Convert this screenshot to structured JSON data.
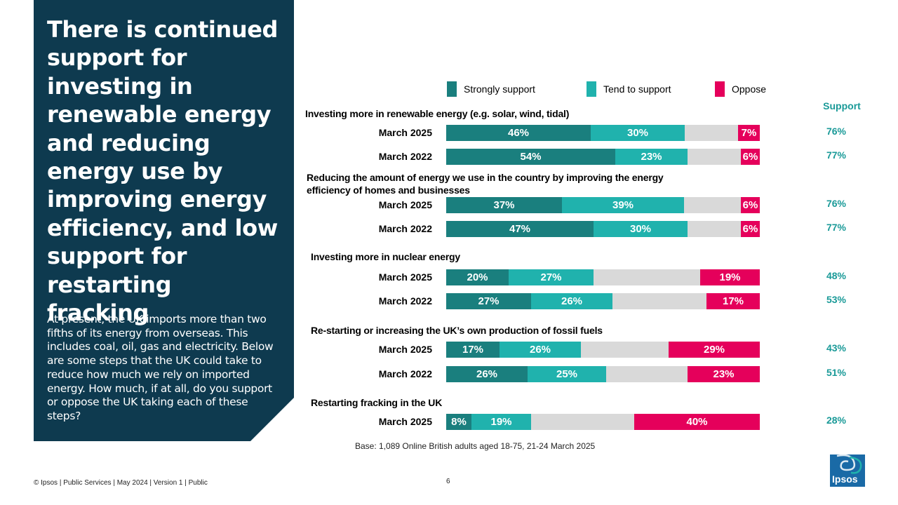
{
  "panel": {
    "title": "There is continued support for investing in renewable energy and reducing energy use by improving energy efficiency, and low support for restarting fracking",
    "body": "At present, the UK imports more than two fifths of its energy from overseas. This includes coal, oil, gas and electricity. Below are some steps that the UK could take to reduce how much we rely on imported energy. How much, if at all, do you support or oppose the UK taking each of these steps?"
  },
  "chart_data": {
    "type": "bar",
    "orientation": "horizontal-stacked-100",
    "legend": [
      {
        "label": "Strongly support",
        "color": "#1a7f7e"
      },
      {
        "label": "Tend to support",
        "color": "#20b2ad"
      },
      {
        "label": "Oppose",
        "color": "#e5005b"
      }
    ],
    "neutral_color": "#d9d9d9",
    "support_header": "Support",
    "questions": [
      {
        "label": "Investing more in renewable energy (e.g. solar, wind, tidal)",
        "rows": [
          {
            "label": "March 2025",
            "strongly": 46,
            "tend": 30,
            "oppose": 7,
            "strongly_label": "46%",
            "tend_label": "30%",
            "oppose_label": "7%",
            "support_label": "76%"
          },
          {
            "label": "March 2022",
            "strongly": 54,
            "tend": 23,
            "oppose": 6,
            "strongly_label": "54%",
            "tend_label": "23%",
            "oppose_label": "6%",
            "support_label": "77%"
          }
        ]
      },
      {
        "label": "Reducing the amount of energy we use in the country by improving the energy efficiency of homes and businesses",
        "rows": [
          {
            "label": "March 2025",
            "strongly": 37,
            "tend": 39,
            "oppose": 6,
            "strongly_label": "37%",
            "tend_label": "39%",
            "oppose_label": "6%",
            "support_label": "76%"
          },
          {
            "label": "March 2022",
            "strongly": 47,
            "tend": 30,
            "oppose": 6,
            "strongly_label": "47%",
            "tend_label": "30%",
            "oppose_label": "6%",
            "support_label": "77%"
          }
        ]
      },
      {
        "label": "Investing more in nuclear energy",
        "rows": [
          {
            "label": "March 2025",
            "strongly": 20,
            "tend": 27,
            "oppose": 19,
            "strongly_label": "20%",
            "tend_label": "27%",
            "oppose_label": "19%",
            "support_label": "48%"
          },
          {
            "label": "March 2022",
            "strongly": 27,
            "tend": 26,
            "oppose": 17,
            "strongly_label": "27%",
            "tend_label": "26%",
            "oppose_label": "17%",
            "support_label": "53%"
          }
        ]
      },
      {
        "label": "Re-starting or increasing the UK’s own production of fossil fuels",
        "rows": [
          {
            "label": "March 2025",
            "strongly": 17,
            "tend": 26,
            "oppose": 29,
            "strongly_label": "17%",
            "tend_label": "26%",
            "oppose_label": "29%",
            "support_label": "43%"
          },
          {
            "label": "March 2022",
            "strongly": 26,
            "tend": 25,
            "oppose": 23,
            "strongly_label": "26%",
            "tend_label": "25%",
            "oppose_label": "23%",
            "support_label": "51%"
          }
        ]
      },
      {
        "label": "Restarting fracking in the UK",
        "rows": [
          {
            "label": "March 2025",
            "strongly": 8,
            "tend": 19,
            "oppose": 40,
            "strongly_label": "8%",
            "tend_label": "19%",
            "oppose_label": "40%",
            "support_label": "28%"
          }
        ]
      }
    ],
    "base_note": "Base: 1,089 Online British adults aged 18-75, 21-24 March 2025"
  },
  "footer": {
    "copyright": "© Ipsos | Public Services | May 2024 | Version 1 | Public",
    "page_number": "6",
    "logo_text": "Ipsos"
  }
}
